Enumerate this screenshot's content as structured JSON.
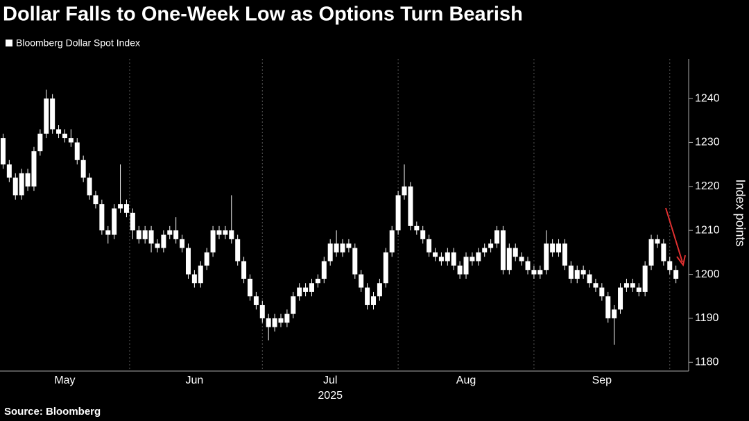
{
  "chart_data": {
    "type": "candlestick",
    "title": "Dollar Falls to One-Week Low as Options Turn Bearish",
    "legend": "Bloomberg Dollar Spot Index",
    "ylabel": "Index points",
    "source": "Source: Bloomberg",
    "x_sublabel": "2025",
    "color": "#ffffff",
    "ylim": [
      1178,
      1249
    ],
    "yticks": [
      1180,
      1190,
      1200,
      1210,
      1220,
      1230,
      1240
    ],
    "xlim": [
      -0.5,
      110.5
    ],
    "xticks": [
      {
        "value": 10,
        "label": "May"
      },
      {
        "value": 31,
        "label": "Jun"
      },
      {
        "value": 53,
        "label": "Jul"
      },
      {
        "value": 75,
        "label": "Aug"
      },
      {
        "value": 97,
        "label": "Sep"
      }
    ],
    "open": [
      1231,
      1225,
      1222,
      1218,
      1223,
      1220,
      1228,
      1232,
      1240,
      1233,
      1232,
      1231,
      1230,
      1226,
      1222,
      1218,
      1216,
      1210,
      1209,
      1215,
      1216,
      1214,
      1210,
      1208,
      1210,
      1207,
      1206,
      1209,
      1210,
      1208,
      1206,
      1200,
      1198,
      1202,
      1205,
      1210,
      1209,
      1210,
      1208,
      1203,
      1199,
      1195,
      1193,
      1190,
      1188,
      1190,
      1189,
      1191,
      1195,
      1197,
      1196,
      1198,
      1199,
      1203,
      1207,
      1205,
      1207,
      1206,
      1200,
      1197,
      1193,
      1195,
      1198,
      1205,
      1210,
      1218,
      1220,
      1211,
      1210,
      1208,
      1205,
      1204,
      1203,
      1205,
      1202,
      1200,
      1204,
      1203,
      1205,
      1206,
      1207,
      1210,
      1201,
      1206,
      1204,
      1203,
      1201,
      1200,
      1201,
      1207,
      1205,
      1207,
      1202,
      1199,
      1201,
      1200,
      1198,
      1197,
      1195,
      1190,
      1192,
      1197,
      1198,
      1197,
      1196,
      1202,
      1208,
      1207,
      1203,
      1201
    ],
    "high": [
      1232,
      1226,
      1223,
      1224,
      1224,
      1229,
      1233,
      1242,
      1241,
      1234,
      1233,
      1233,
      1231,
      1227,
      1223,
      1219,
      1217,
      1211,
      1216,
      1225,
      1217,
      1215,
      1211,
      1211,
      1211,
      1208,
      1210,
      1211,
      1213,
      1209,
      1207,
      1201,
      1203,
      1206,
      1211,
      1211,
      1211,
      1218,
      1209,
      1204,
      1200,
      1196,
      1194,
      1191,
      1191,
      1191,
      1192,
      1196,
      1198,
      1198,
      1199,
      1200,
      1204,
      1208,
      1210,
      1208,
      1208,
      1207,
      1201,
      1198,
      1196,
      1199,
      1206,
      1211,
      1219,
      1225,
      1221,
      1212,
      1211,
      1209,
      1206,
      1205,
      1206,
      1206,
      1203,
      1205,
      1205,
      1206,
      1207,
      1208,
      1211,
      1211,
      1207,
      1207,
      1205,
      1204,
      1202,
      1202,
      1210,
      1208,
      1208,
      1208,
      1203,
      1202,
      1202,
      1201,
      1199,
      1198,
      1196,
      1193,
      1198,
      1199,
      1199,
      1198,
      1203,
      1209,
      1209,
      1208,
      1204,
      1202
    ],
    "low": [
      1224,
      1221,
      1217,
      1217,
      1219,
      1219,
      1227,
      1231,
      1232,
      1231,
      1230,
      1229,
      1225,
      1221,
      1217,
      1215,
      1209,
      1207,
      1208,
      1214,
      1213,
      1208,
      1207,
      1207,
      1205,
      1205,
      1205,
      1208,
      1207,
      1205,
      1199,
      1197,
      1197,
      1201,
      1204,
      1208,
      1208,
      1207,
      1202,
      1198,
      1194,
      1192,
      1189,
      1185,
      1187,
      1188,
      1188,
      1190,
      1194,
      1195,
      1195,
      1197,
      1198,
      1202,
      1204,
      1204,
      1205,
      1199,
      1196,
      1192,
      1192,
      1194,
      1197,
      1204,
      1209,
      1217,
      1210,
      1209,
      1207,
      1204,
      1203,
      1202,
      1202,
      1201,
      1199,
      1199,
      1202,
      1202,
      1204,
      1205,
      1206,
      1200,
      1200,
      1203,
      1202,
      1200,
      1199,
      1199,
      1200,
      1204,
      1204,
      1201,
      1198,
      1198,
      1199,
      1197,
      1196,
      1194,
      1189,
      1184,
      1191,
      1196,
      1196,
      1195,
      1195,
      1201,
      1206,
      1202,
      1200,
      1198
    ],
    "close": [
      1225,
      1222,
      1218,
      1223,
      1220,
      1228,
      1232,
      1240,
      1233,
      1232,
      1231,
      1230,
      1226,
      1222,
      1218,
      1216,
      1210,
      1209,
      1215,
      1216,
      1214,
      1210,
      1208,
      1210,
      1207,
      1206,
      1209,
      1210,
      1208,
      1206,
      1200,
      1198,
      1202,
      1205,
      1210,
      1209,
      1210,
      1208,
      1203,
      1199,
      1195,
      1193,
      1190,
      1188,
      1190,
      1189,
      1191,
      1195,
      1197,
      1196,
      1198,
      1199,
      1203,
      1207,
      1205,
      1207,
      1206,
      1200,
      1197,
      1193,
      1195,
      1198,
      1205,
      1210,
      1218,
      1220,
      1211,
      1210,
      1208,
      1205,
      1204,
      1203,
      1205,
      1202,
      1200,
      1204,
      1203,
      1205,
      1206,
      1207,
      1210,
      1201,
      1206,
      1204,
      1203,
      1201,
      1200,
      1201,
      1207,
      1205,
      1207,
      1202,
      1199,
      1201,
      1200,
      1198,
      1197,
      1195,
      1190,
      1192,
      1197,
      1198,
      1197,
      1196,
      1202,
      1208,
      1207,
      1203,
      1201,
      1199
    ]
  }
}
